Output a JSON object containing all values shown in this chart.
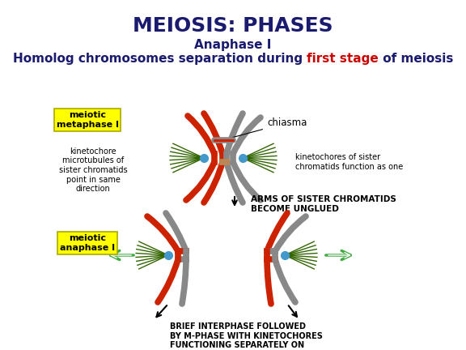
{
  "title": "MEIOSIS: PHASES",
  "title_color": "#1a1a6e",
  "title_fontsize": 18,
  "subtitle1": "Anaphase I",
  "subtitle1_color": "#1a1a6e",
  "subtitle1_fontsize": 11,
  "subtitle2_parts": [
    {
      "text": "Homolog chromosomes separation during ",
      "color": "#1a1a6e"
    },
    {
      "text": "first stage",
      "color": "#cc0000"
    },
    {
      "text": " of meiosis",
      "color": "#1a1a6e"
    }
  ],
  "subtitle2_fontsize": 11,
  "bg_color": "#ffffff",
  "yellow_box_color": "#ffff00",
  "yellow_box_edge": "#aaaa00",
  "label1_text": "meiotic\nmetaphase I",
  "label2_text": "meiotic\nanaphase I",
  "chiasma_label": "chiasma",
  "left_label": "kinetochore\nmicrotubules of\nsister chromatids\npoint in same\ndirection",
  "right_label": "kinetochores of sister\nchromatids function as one",
  "middle_label": "ARMS OF SISTER CHROMATIDS\nBECOME UNGLUED",
  "bottom_label": "BRIEF INTERPHASE FOLLOWED\nBY M-PHASE WITH KINETOCHORES\nFUNCTIONING SEPARATELY ON\nEACH SISTER CHROMATID",
  "red_color": "#cc2200",
  "gray_color": "#888888",
  "blue_dot_color": "#4499cc",
  "green_line_color": "#336600",
  "green_arrow_color": "#44aa44"
}
